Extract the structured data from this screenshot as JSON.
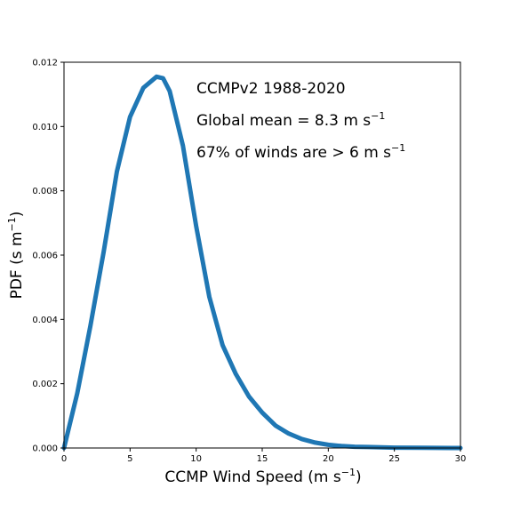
{
  "chart_data": {
    "type": "line",
    "xlabel": "CCMP Wind Speed (m s",
    "xlabel_sup": "−1",
    "xlabel_end": ")",
    "ylabel": "PDF (s m",
    "ylabel_sup": "−1",
    "ylabel_end": ")",
    "xlim": [
      0,
      30
    ],
    "ylim": [
      0,
      0.012
    ],
    "xticks": [
      0,
      5,
      10,
      15,
      20,
      25,
      30
    ],
    "xtick_labels": [
      "0",
      "5",
      "10",
      "15",
      "20",
      "25",
      "30"
    ],
    "yticks": [
      0,
      0.002,
      0.004,
      0.006,
      0.008,
      0.01,
      0.012
    ],
    "ytick_labels": [
      "0.000",
      "0.002",
      "0.004",
      "0.006",
      "0.008",
      "0.010",
      "0.012"
    ],
    "grid": false,
    "series": [
      {
        "color": "#1f77b4",
        "x": [
          0,
          1,
          2,
          3,
          4,
          5,
          6,
          7,
          7.5,
          8,
          9,
          10,
          11,
          12,
          13,
          14,
          15,
          16,
          17,
          18,
          19,
          20,
          21,
          22,
          23,
          24,
          25,
          27,
          30
        ],
        "y": [
          0,
          0.0017,
          0.0038,
          0.0061,
          0.0086,
          0.0103,
          0.0112,
          0.01155,
          0.0115,
          0.0111,
          0.0094,
          0.0069,
          0.0047,
          0.0032,
          0.0023,
          0.0016,
          0.0011,
          0.0007,
          0.00045,
          0.00028,
          0.00017,
          0.0001,
          6e-05,
          4e-05,
          3e-05,
          2e-05,
          1e-05,
          5e-06,
          0.0
        ]
      }
    ],
    "annotations": [
      {
        "text": "CCMPv2 1988-2020",
        "sup": "",
        "tail": ""
      },
      {
        "text": "Global mean = 8.3 m s",
        "sup": "−1",
        "tail": ""
      },
      {
        "text": "67% of winds are > 6 m s",
        "sup": "−1",
        "tail": ""
      }
    ]
  }
}
